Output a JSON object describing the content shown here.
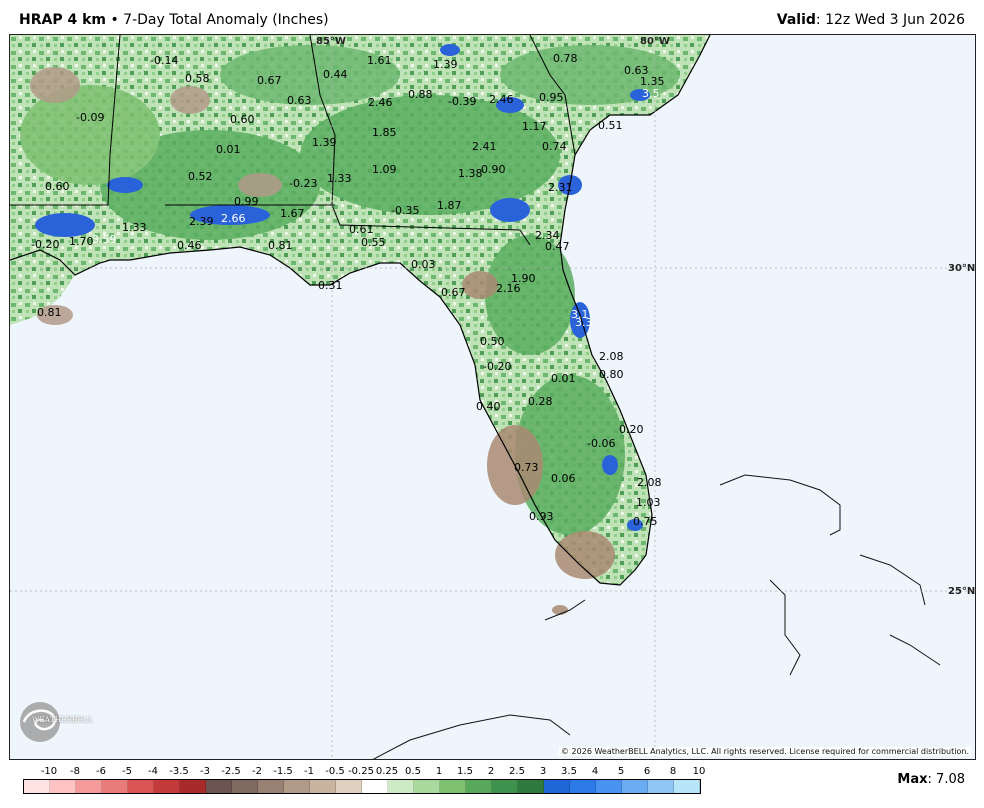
{
  "header": {
    "model": "HRAP 4 km",
    "separator": "•",
    "product": "7-Day Total Anomaly (Inches)",
    "valid_label": "Valid",
    "valid_time": ": 12z Wed 3 Jun 2026"
  },
  "map": {
    "gridlines": {
      "lon1": "85°W",
      "lon2": "80°W",
      "lat1": "30°N",
      "lat2": "25°N"
    },
    "copyright": "© 2026 WeatherBELL Analytics, LLC. All rights reserved. License required for commercial distribution.",
    "logo_text": "WEATHERBELL",
    "logo_icon": "swirl-logo-icon",
    "colors": {
      "water": "#eef5fc",
      "land_base": "#cfe9c8",
      "green": "#4fa35a",
      "brown": "#a98a72",
      "blue": "#2a63d9"
    },
    "values": [
      {
        "text": "-0.14"
      },
      {
        "text": "0.58"
      },
      {
        "text": "0.67"
      },
      {
        "text": "0.44"
      },
      {
        "text": "1.61"
      },
      {
        "text": "1.39"
      },
      {
        "text": "0.78"
      },
      {
        "text": "0.63"
      },
      {
        "text": "1.35"
      },
      {
        "text": "3.5"
      },
      {
        "text": "-0.09"
      },
      {
        "text": "0.63"
      },
      {
        "text": "2.46"
      },
      {
        "text": "0.88"
      },
      {
        "text": "-0.39"
      },
      {
        "text": "2.46"
      },
      {
        "text": "0.95"
      },
      {
        "text": "0.60"
      },
      {
        "text": "1.85"
      },
      {
        "text": "1.17"
      },
      {
        "text": "0.51"
      },
      {
        "text": "0.01"
      },
      {
        "text": "1.39"
      },
      {
        "text": "2.41"
      },
      {
        "text": "0.74"
      },
      {
        "text": "0.52"
      },
      {
        "text": "-0.23"
      },
      {
        "text": "1.33"
      },
      {
        "text": "1.09"
      },
      {
        "text": "1.38"
      },
      {
        "text": "0.90"
      },
      {
        "text": "0.60"
      },
      {
        "text": "2.31"
      },
      {
        "text": "0.99"
      },
      {
        "text": "1.67"
      },
      {
        "text": "-0.35"
      },
      {
        "text": "1.87"
      },
      {
        "text": "2.39"
      },
      {
        "text": "2.66"
      },
      {
        "text": "1.33"
      },
      {
        "text": "0.61"
      },
      {
        "text": "2.34"
      },
      {
        "text": "-0.20"
      },
      {
        "text": "1.70"
      },
      {
        "text": "3.59"
      },
      {
        "text": "0.46"
      },
      {
        "text": "0.81"
      },
      {
        "text": "0.55"
      },
      {
        "text": "0.47"
      },
      {
        "text": "0.03"
      },
      {
        "text": "1.90"
      },
      {
        "text": "0.31"
      },
      {
        "text": "0.67"
      },
      {
        "text": "2.16"
      },
      {
        "text": "0.81"
      },
      {
        "text": "3.1"
      },
      {
        "text": "3.3"
      },
      {
        "text": "0.50"
      },
      {
        "text": "2.08"
      },
      {
        "text": "-0.20"
      },
      {
        "text": "0.80"
      },
      {
        "text": "0.01"
      },
      {
        "text": "0.28"
      },
      {
        "text": "0.40"
      },
      {
        "text": "0.20"
      },
      {
        "text": "-0.06"
      },
      {
        "text": "0.73"
      },
      {
        "text": "0.06"
      },
      {
        "text": "2.08"
      },
      {
        "text": "1.03"
      },
      {
        "text": "0.93"
      },
      {
        "text": "0.75"
      }
    ]
  },
  "legend": {
    "ticks": [
      "-10",
      "-8",
      "-6",
      "-5",
      "-4",
      "-3.5",
      "-3",
      "-2.5",
      "-2",
      "-1.5",
      "-1",
      "-0.5",
      "-0.25",
      "0.25",
      "0.5",
      "1",
      "1.5",
      "2",
      "2.5",
      "3",
      "3.5",
      "4",
      "5",
      "6",
      "8",
      "10"
    ],
    "colors": [
      "#ffe3e3",
      "#ffc2c2",
      "#f59a9a",
      "#ea7b7b",
      "#d95555",
      "#c43a3a",
      "#a82a2a",
      "#6b5350",
      "#7f6a62",
      "#988173",
      "#b19a88",
      "#c9b4a0",
      "#e0d0bf",
      "#ffffff",
      "#cdebc4",
      "#a9d99d",
      "#7cc070",
      "#57a85a",
      "#3f924d",
      "#2f7a3f",
      "#1f66d8",
      "#2b7ae8",
      "#4793ef",
      "#6aacf2",
      "#8fc6f5",
      "#b6e6f7"
    ],
    "max_label": "Max",
    "max_value": ": 7.08"
  }
}
